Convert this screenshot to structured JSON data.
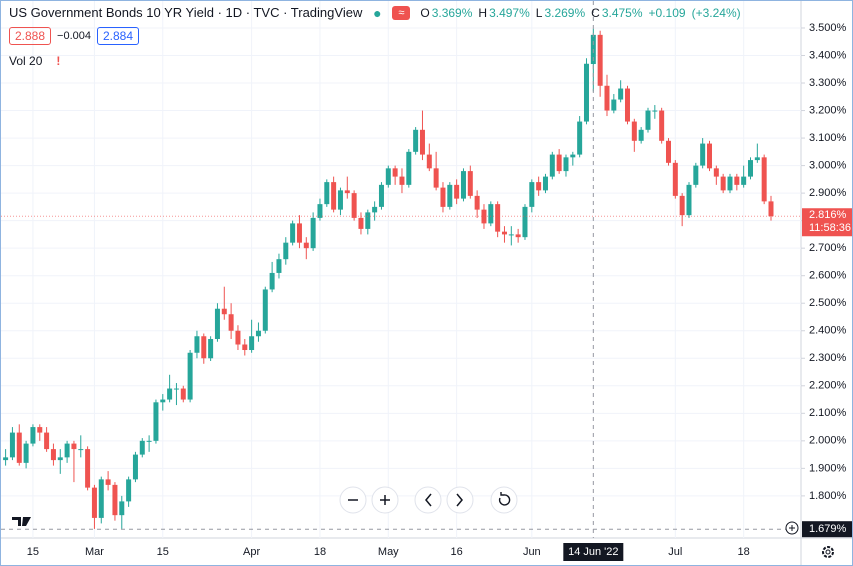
{
  "chart_data": {
    "type": "candlestick",
    "title": "US Government Bonds 10 YR Yield · 1D · TVC · TradingView",
    "legend_ohlc": [
      {
        "key": "O",
        "value": 3.369,
        "label": "3.369%"
      },
      {
        "key": "H",
        "value": 3.497,
        "label": "3.497%"
      },
      {
        "key": "L",
        "value": 3.269,
        "label": "3.269%"
      },
      {
        "key": "C",
        "value": 3.475,
        "label": "3.475%"
      }
    ],
    "change": {
      "value": 0.109,
      "label": "+0.109"
    },
    "change_pct": {
      "value": 3.24,
      "label": "(+3.24%)"
    },
    "bid": 2.888,
    "spread": {
      "value": -0.004,
      "label": "−0.004"
    },
    "ask": 2.884,
    "indicator": "Vol 20",
    "up_color": "#26a69a",
    "down_color": "#ef5350",
    "grid": true,
    "ylim": [
      1.647,
      3.598
    ],
    "yticks": [
      {
        "value": 1.8,
        "label": "1.800%"
      },
      {
        "value": 1.9,
        "label": "1.900%"
      },
      {
        "value": 2.0,
        "label": "2.000%"
      },
      {
        "value": 2.1,
        "label": "2.100%"
      },
      {
        "value": 2.2,
        "label": "2.200%"
      },
      {
        "value": 2.3,
        "label": "2.300%"
      },
      {
        "value": 2.4,
        "label": "2.400%"
      },
      {
        "value": 2.5,
        "label": "2.500%"
      },
      {
        "value": 2.6,
        "label": "2.600%"
      },
      {
        "value": 2.7,
        "label": "2.700%"
      },
      {
        "value": 2.8,
        "label": "2.800%"
      },
      {
        "value": 2.9,
        "label": "2.900%"
      },
      {
        "value": 3.0,
        "label": "3.000%"
      },
      {
        "value": 3.1,
        "label": "3.100%"
      },
      {
        "value": 3.2,
        "label": "3.200%"
      },
      {
        "value": 3.3,
        "label": "3.300%"
      },
      {
        "value": 3.4,
        "label": "3.400%"
      },
      {
        "value": 3.5,
        "label": "3.500%"
      }
    ],
    "last_price": {
      "value": 2.816,
      "label": "2.816%"
    },
    "countdown": "11:58:36",
    "crosshair": {
      "date": "14 Jun '22",
      "price": {
        "value": 1.679,
        "label": "1.679%"
      }
    },
    "categories": [
      null,
      null,
      null,
      null,
      "15",
      null,
      null,
      null,
      null,
      null,
      null,
      null,
      null,
      "Mar",
      null,
      null,
      null,
      null,
      null,
      null,
      null,
      null,
      null,
      "15",
      null,
      null,
      null,
      null,
      null,
      null,
      null,
      null,
      null,
      null,
      null,
      null,
      "Apr",
      null,
      null,
      null,
      null,
      null,
      null,
      null,
      null,
      null,
      "18",
      null,
      null,
      null,
      null,
      null,
      null,
      null,
      null,
      null,
      "May",
      null,
      null,
      null,
      null,
      null,
      null,
      null,
      null,
      null,
      "16",
      null,
      null,
      null,
      null,
      null,
      null,
      null,
      null,
      null,
      null,
      "Jun",
      null,
      null,
      null,
      null,
      null,
      null,
      null,
      null,
      null,
      null,
      null,
      null,
      null,
      null,
      null,
      null,
      null,
      null,
      null,
      null,
      "Jul",
      null,
      null,
      null,
      null,
      null,
      null,
      null,
      null,
      null,
      "18",
      null,
      null,
      null,
      null
    ],
    "ohlc": [
      [
        1.93,
        1.97,
        1.91,
        1.94
      ],
      [
        1.94,
        2.05,
        1.93,
        2.03
      ],
      [
        2.03,
        2.06,
        1.91,
        1.92
      ],
      [
        1.92,
        2.0,
        1.9,
        1.99
      ],
      [
        1.99,
        2.06,
        1.98,
        2.05
      ],
      [
        2.05,
        2.06,
        2.0,
        2.03
      ],
      [
        2.03,
        2.05,
        1.96,
        1.97
      ],
      [
        1.97,
        1.99,
        1.91,
        1.93
      ],
      [
        1.93,
        1.97,
        1.88,
        1.94
      ],
      [
        1.94,
        2.0,
        1.92,
        1.99
      ],
      [
        1.99,
        2.0,
        1.85,
        1.97
      ],
      [
        1.97,
        2.02,
        1.94,
        1.97
      ],
      [
        1.97,
        1.98,
        1.82,
        1.83
      ],
      [
        1.83,
        1.84,
        1.68,
        1.72
      ],
      [
        1.72,
        1.87,
        1.7,
        1.86
      ],
      [
        1.86,
        1.89,
        1.82,
        1.84
      ],
      [
        1.84,
        1.85,
        1.71,
        1.73
      ],
      [
        1.73,
        1.8,
        1.68,
        1.78
      ],
      [
        1.78,
        1.87,
        1.76,
        1.86
      ],
      [
        1.86,
        1.96,
        1.85,
        1.95
      ],
      [
        1.95,
        2.01,
        1.94,
        2.0
      ],
      [
        2.0,
        2.02,
        1.96,
        2.0
      ],
      [
        2.0,
        2.15,
        1.99,
        2.14
      ],
      [
        2.14,
        2.17,
        2.11,
        2.15
      ],
      [
        2.15,
        2.24,
        2.14,
        2.19
      ],
      [
        2.19,
        2.21,
        2.13,
        2.19
      ],
      [
        2.19,
        2.2,
        2.14,
        2.15
      ],
      [
        2.15,
        2.33,
        2.14,
        2.32
      ],
      [
        2.32,
        2.4,
        2.3,
        2.38
      ],
      [
        2.38,
        2.39,
        2.28,
        2.3
      ],
      [
        2.3,
        2.38,
        2.29,
        2.37
      ],
      [
        2.37,
        2.5,
        2.36,
        2.48
      ],
      [
        2.48,
        2.56,
        2.44,
        2.46
      ],
      [
        2.46,
        2.5,
        2.37,
        2.4
      ],
      [
        2.4,
        2.42,
        2.33,
        2.35
      ],
      [
        2.35,
        2.37,
        2.31,
        2.33
      ],
      [
        2.33,
        2.44,
        2.32,
        2.38
      ],
      [
        2.38,
        2.43,
        2.36,
        2.4
      ],
      [
        2.4,
        2.56,
        2.39,
        2.55
      ],
      [
        2.55,
        2.65,
        2.54,
        2.61
      ],
      [
        2.61,
        2.68,
        2.59,
        2.66
      ],
      [
        2.66,
        2.74,
        2.64,
        2.72
      ],
      [
        2.72,
        2.8,
        2.71,
        2.79
      ],
      [
        2.79,
        2.82,
        2.7,
        2.72
      ],
      [
        2.72,
        2.74,
        2.66,
        2.7
      ],
      [
        2.7,
        2.83,
        2.69,
        2.81
      ],
      [
        2.81,
        2.88,
        2.8,
        2.86
      ],
      [
        2.86,
        2.95,
        2.85,
        2.94
      ],
      [
        2.94,
        2.96,
        2.83,
        2.84
      ],
      [
        2.84,
        2.92,
        2.82,
        2.91
      ],
      [
        2.91,
        2.96,
        2.88,
        2.9
      ],
      [
        2.9,
        2.91,
        2.8,
        2.81
      ],
      [
        2.81,
        2.83,
        2.75,
        2.77
      ],
      [
        2.77,
        2.84,
        2.75,
        2.83
      ],
      [
        2.83,
        2.87,
        2.8,
        2.85
      ],
      [
        2.85,
        2.94,
        2.84,
        2.93
      ],
      [
        2.93,
        3.0,
        2.92,
        2.99
      ],
      [
        2.99,
        3.0,
        2.93,
        2.96
      ],
      [
        2.96,
        2.99,
        2.9,
        2.93
      ],
      [
        2.93,
        3.06,
        2.92,
        3.05
      ],
      [
        3.05,
        3.14,
        3.04,
        3.13
      ],
      [
        3.13,
        3.2,
        3.02,
        3.04
      ],
      [
        3.04,
        3.08,
        2.98,
        2.99
      ],
      [
        2.99,
        3.05,
        2.91,
        2.92
      ],
      [
        2.92,
        2.94,
        2.83,
        2.85
      ],
      [
        2.85,
        2.94,
        2.84,
        2.93
      ],
      [
        2.93,
        2.95,
        2.86,
        2.88
      ],
      [
        2.88,
        2.99,
        2.87,
        2.98
      ],
      [
        2.98,
        3.0,
        2.88,
        2.89
      ],
      [
        2.89,
        2.91,
        2.81,
        2.84
      ],
      [
        2.84,
        2.86,
        2.77,
        2.79
      ],
      [
        2.79,
        2.87,
        2.78,
        2.86
      ],
      [
        2.86,
        2.87,
        2.74,
        2.76
      ],
      [
        2.76,
        2.78,
        2.72,
        2.75
      ],
      [
        2.75,
        2.78,
        2.71,
        2.75
      ],
      [
        2.75,
        2.77,
        2.72,
        2.74
      ],
      [
        2.74,
        2.86,
        2.73,
        2.85
      ],
      [
        2.85,
        2.95,
        2.83,
        2.94
      ],
      [
        2.94,
        2.96,
        2.89,
        2.91
      ],
      [
        2.91,
        2.97,
        2.9,
        2.96
      ],
      [
        2.96,
        3.05,
        2.95,
        3.04
      ],
      [
        3.04,
        3.06,
        2.97,
        2.98
      ],
      [
        2.98,
        3.04,
        2.96,
        3.03
      ],
      [
        3.03,
        3.05,
        3.0,
        3.04
      ],
      [
        3.04,
        3.18,
        3.03,
        3.16
      ],
      [
        3.16,
        3.39,
        3.15,
        3.37
      ],
      [
        3.369,
        3.497,
        3.269,
        3.475
      ],
      [
        3.475,
        3.49,
        3.25,
        3.29
      ],
      [
        3.29,
        3.33,
        3.18,
        3.2
      ],
      [
        3.2,
        3.26,
        3.19,
        3.24
      ],
      [
        3.24,
        3.31,
        3.23,
        3.28
      ],
      [
        3.28,
        3.29,
        3.15,
        3.16
      ],
      [
        3.16,
        3.17,
        3.05,
        3.09
      ],
      [
        3.09,
        3.14,
        3.08,
        3.13
      ],
      [
        3.13,
        3.21,
        3.12,
        3.2
      ],
      [
        3.2,
        3.22,
        3.17,
        3.2
      ],
      [
        3.2,
        3.21,
        3.08,
        3.09
      ],
      [
        3.09,
        3.1,
        3.0,
        3.01
      ],
      [
        3.01,
        3.02,
        2.88,
        2.89
      ],
      [
        2.89,
        2.9,
        2.78,
        2.82
      ],
      [
        2.82,
        2.94,
        2.81,
        2.93
      ],
      [
        2.93,
        3.01,
        2.92,
        3.0
      ],
      [
        3.0,
        3.1,
        2.99,
        3.08
      ],
      [
        3.08,
        3.09,
        2.98,
        2.99
      ],
      [
        2.99,
        3.0,
        2.93,
        2.96
      ],
      [
        2.96,
        2.97,
        2.9,
        2.91
      ],
      [
        2.91,
        2.97,
        2.9,
        2.96
      ],
      [
        2.96,
        2.97,
        2.91,
        2.93
      ],
      [
        2.93,
        3.0,
        2.92,
        2.96
      ],
      [
        2.96,
        3.03,
        2.95,
        3.02
      ],
      [
        3.02,
        3.08,
        3.01,
        3.03
      ],
      [
        3.03,
        3.04,
        2.86,
        2.87
      ],
      [
        2.87,
        2.89,
        2.8,
        2.816
      ]
    ]
  }
}
